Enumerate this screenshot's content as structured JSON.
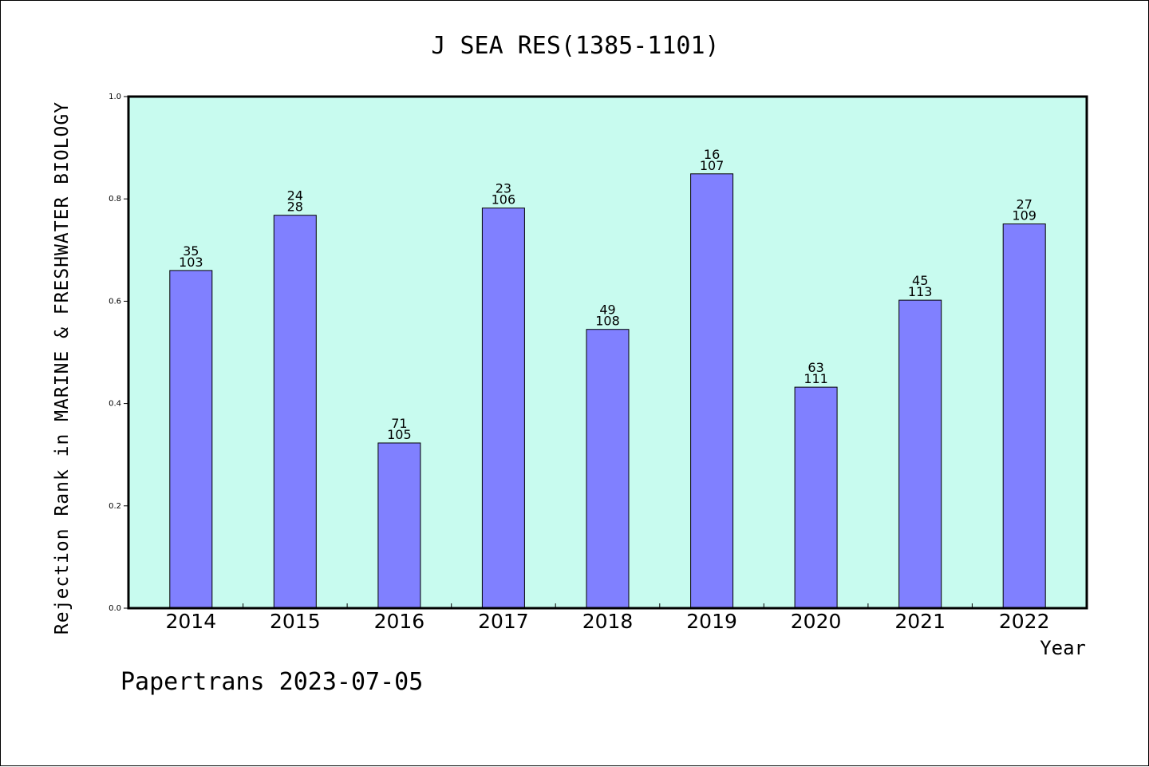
{
  "chart_data": {
    "type": "bar",
    "title": "J SEA RES(1385-1101)",
    "xlabel": "Year",
    "ylabel": "Rejection Rank in MARINE & FRESHWATER BIOLOGY",
    "categories": [
      "2014",
      "2015",
      "2016",
      "2017",
      "2018",
      "2019",
      "2020",
      "2021",
      "2022"
    ],
    "values": [
      0.66,
      0.768,
      0.323,
      0.782,
      0.545,
      0.849,
      0.432,
      0.602,
      0.751
    ],
    "labels_top": [
      "35",
      "24",
      "71",
      "23",
      "49",
      "16",
      "63",
      "45",
      "27"
    ],
    "labels_bottom": [
      "103",
      "28",
      "105",
      "106",
      "108",
      "107",
      "111",
      "113",
      "109"
    ],
    "ylim": [
      0,
      1.0
    ],
    "yticks": [
      "0.0",
      "0.2",
      "0.4",
      "0.6",
      "0.8",
      "1.0"
    ],
    "grid": false,
    "colors": {
      "plot_bg": "#c8fbef",
      "bar": "#8080ff",
      "bar_edge": "#000000"
    }
  },
  "footer": "Papertrans 2023-07-05"
}
